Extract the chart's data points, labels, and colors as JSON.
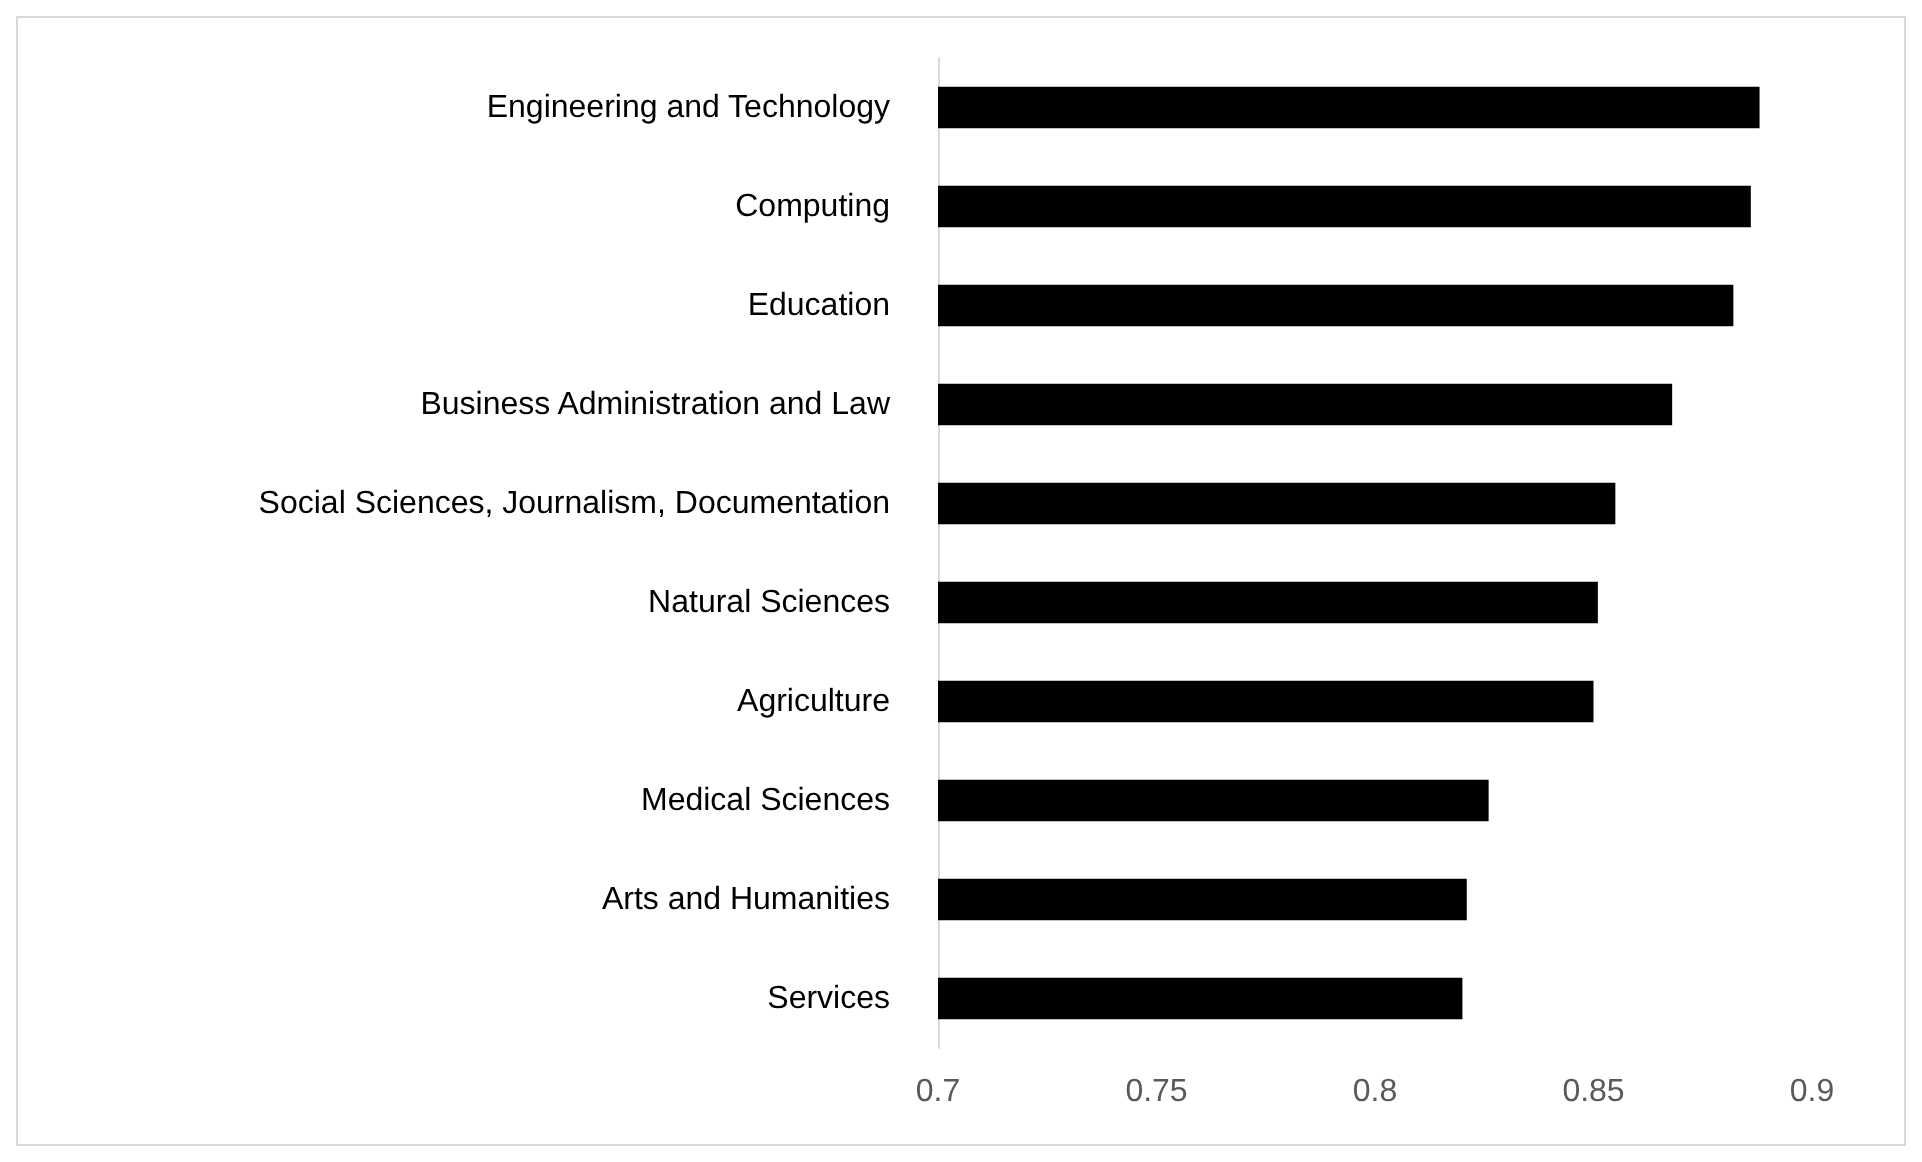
{
  "chart_data": {
    "type": "bar",
    "orientation": "horizontal",
    "categories": [
      "Engineering and Technology",
      "Computing",
      "Education",
      "Business Administration and Law",
      "Social Sciences, Journalism, Documentation",
      "Natural Sciences",
      "Agriculture",
      "Medical Sciences",
      "Arts and Humanities",
      "Services"
    ],
    "values": [
      0.888,
      0.886,
      0.882,
      0.868,
      0.855,
      0.851,
      0.85,
      0.826,
      0.821,
      0.82
    ],
    "color": "#000000",
    "xlim": [
      0.7,
      0.9
    ],
    "xticks": [
      0.7,
      0.75,
      0.8,
      0.85,
      0.9
    ],
    "grid": false
  }
}
